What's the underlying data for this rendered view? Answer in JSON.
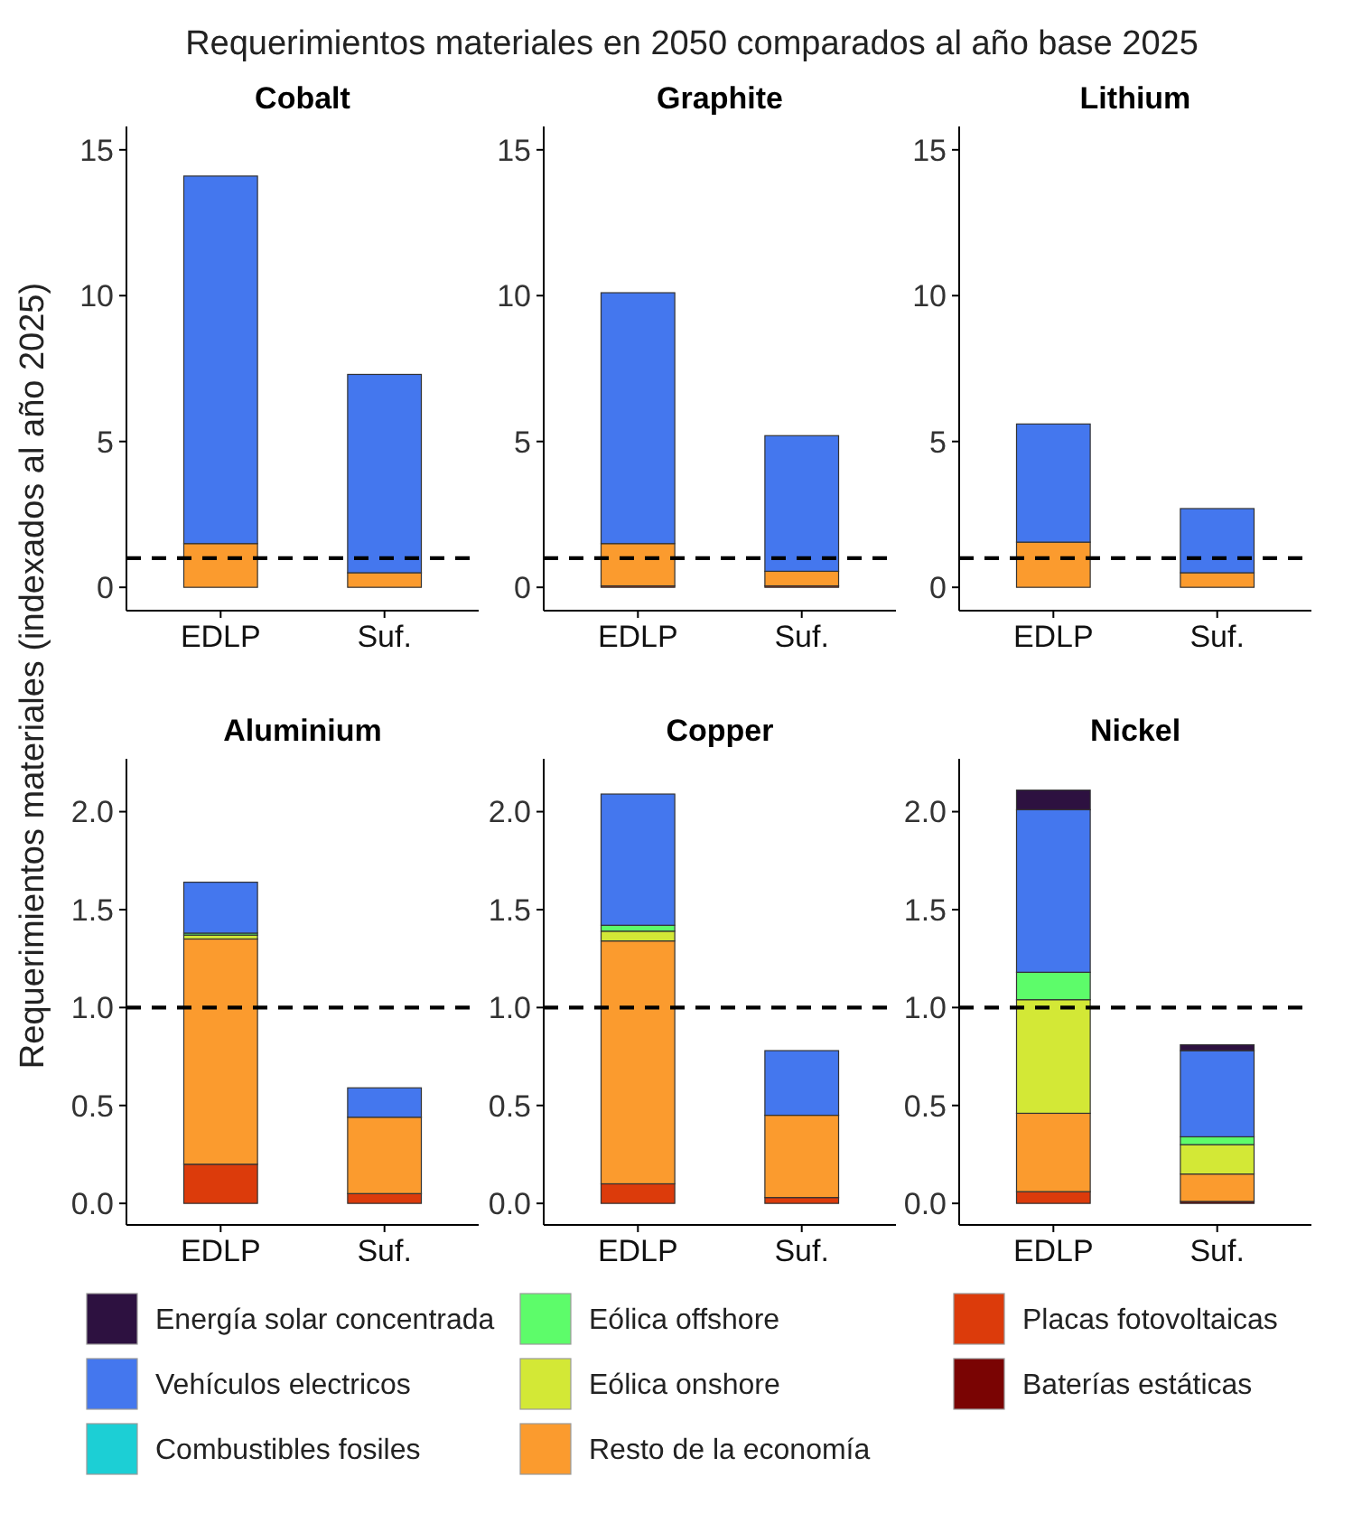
{
  "chart_data": [
    {
      "type": "bar",
      "title": "Cobalt",
      "ylabel": "Requerimientos materiales (indexados al año 2025)",
      "annotations": [
        "Requerimientos materiales en 2050 comparados al año base 2025"
      ],
      "legend": "bottom",
      "stacked": true,
      "categories": [
        "EDLP",
        "Suf."
      ],
      "ylim": [
        -0.8,
        15.8
      ],
      "yticks": [
        0,
        5,
        10,
        15
      ],
      "ref_lines": [
        {
          "axis": "y",
          "value": 1,
          "color": "#000000",
          "line_style": "dashed"
        }
      ],
      "series": [
        {
          "name": "Baterías estáticas",
          "color": "#7a0403",
          "values": [
            null,
            null
          ]
        },
        {
          "name": "Placas fotovoltaicas",
          "color": "#dc3b0b",
          "values": [
            null,
            null
          ]
        },
        {
          "name": "Resto de la economía",
          "color": "#fb9b2e",
          "values": [
            1.5,
            0.5
          ]
        },
        {
          "name": "Eólica onshore",
          "color": "#d3e836",
          "values": [
            null,
            null
          ]
        },
        {
          "name": "Eólica offshore",
          "color": "#5dfc6a",
          "values": [
            null,
            null
          ]
        },
        {
          "name": "Combustibles fosiles",
          "color": "#1ccfd5",
          "values": [
            null,
            null
          ]
        },
        {
          "name": "Vehículos electricos",
          "color": "#4477ee",
          "values": [
            12.6,
            6.8
          ]
        },
        {
          "name": "Energía solar concentrada",
          "color": "#2d1140",
          "values": [
            null,
            null
          ]
        }
      ]
    },
    {
      "type": "bar",
      "title": "Graphite",
      "stacked": true,
      "categories": [
        "EDLP",
        "Suf."
      ],
      "ylim": [
        -0.8,
        15.8
      ],
      "yticks": [
        0,
        5,
        10,
        15
      ],
      "ref_lines": [
        {
          "axis": "y",
          "value": 1,
          "color": "#000000",
          "line_style": "dashed"
        }
      ],
      "series": [
        {
          "color": "#dc3b0b",
          "values": [
            0.05,
            0.05
          ]
        },
        {
          "color": "#fb9b2e",
          "values": [
            1.45,
            0.5
          ]
        },
        {
          "color": "#4477ee",
          "values": [
            8.6,
            4.65
          ]
        }
      ]
    },
    {
      "type": "bar",
      "title": "Lithium",
      "stacked": true,
      "categories": [
        "EDLP",
        "Suf."
      ],
      "ylim": [
        -0.8,
        15.8
      ],
      "yticks": [
        0,
        5,
        10,
        15
      ],
      "ref_lines": [
        {
          "axis": "y",
          "value": 1,
          "color": "#000000",
          "line_style": "dashed"
        }
      ],
      "series": [
        {
          "color": "#fb9b2e",
          "values": [
            1.55,
            0.5
          ]
        },
        {
          "color": "#4477ee",
          "values": [
            4.05,
            2.2
          ]
        }
      ]
    },
    {
      "type": "bar",
      "title": "Aluminium",
      "stacked": true,
      "categories": [
        "EDLP",
        "Suf."
      ],
      "ylim": [
        -0.11,
        2.27
      ],
      "yticks": [
        {
          "value": 0,
          "label": "0.0"
        },
        {
          "value": 0.5,
          "label": "0.5"
        },
        {
          "value": 1,
          "label": "1.0"
        },
        {
          "value": 1.5,
          "label": "1.5"
        },
        {
          "value": 2,
          "label": "2.0"
        }
      ],
      "ref_lines": [
        {
          "axis": "y",
          "value": 1,
          "color": "#000000",
          "line_style": "dashed"
        }
      ],
      "series": [
        {
          "color": "#dc3b0b",
          "values": [
            0.2,
            0.05
          ]
        },
        {
          "color": "#fb9b2e",
          "values": [
            1.15,
            0.39
          ]
        },
        {
          "color": "#d3e836",
          "values": [
            0.02,
            null
          ]
        },
        {
          "color": "#5dfc6a",
          "values": [
            0.01,
            null
          ]
        },
        {
          "color": "#4477ee",
          "values": [
            0.26,
            0.15
          ]
        }
      ]
    },
    {
      "type": "bar",
      "title": "Copper",
      "stacked": true,
      "categories": [
        "EDLP",
        "Suf."
      ],
      "ylim": [
        -0.11,
        2.27
      ],
      "yticks": [
        {
          "value": 0,
          "label": "0.0"
        },
        {
          "value": 0.5,
          "label": "0.5"
        },
        {
          "value": 1,
          "label": "1.0"
        },
        {
          "value": 1.5,
          "label": "1.5"
        },
        {
          "value": 2,
          "label": "2.0"
        }
      ],
      "ref_lines": [
        {
          "axis": "y",
          "value": 1,
          "color": "#000000",
          "line_style": "dashed"
        }
      ],
      "series": [
        {
          "color": "#dc3b0b",
          "values": [
            0.1,
            0.03
          ]
        },
        {
          "color": "#fb9b2e",
          "values": [
            1.24,
            0.42
          ]
        },
        {
          "color": "#d3e836",
          "values": [
            0.05,
            null
          ]
        },
        {
          "color": "#5dfc6a",
          "values": [
            0.03,
            null
          ]
        },
        {
          "color": "#4477ee",
          "values": [
            0.67,
            0.33
          ]
        }
      ]
    },
    {
      "type": "bar",
      "title": "Nickel",
      "stacked": true,
      "categories": [
        "EDLP",
        "Suf."
      ],
      "ylim": [
        -0.11,
        2.27
      ],
      "yticks": [
        {
          "value": 0,
          "label": "0.0"
        },
        {
          "value": 0.5,
          "label": "0.5"
        },
        {
          "value": 1,
          "label": "1.0"
        },
        {
          "value": 1.5,
          "label": "1.5"
        },
        {
          "value": 2,
          "label": "2.0"
        }
      ],
      "ref_lines": [
        {
          "axis": "y",
          "value": 1,
          "color": "#000000",
          "line_style": "dashed"
        }
      ],
      "series": [
        {
          "color": "#7a0403",
          "values": [
            null,
            0.01
          ]
        },
        {
          "color": "#dc3b0b",
          "values": [
            0.06,
            null
          ]
        },
        {
          "color": "#fb9b2e",
          "values": [
            0.4,
            0.14
          ]
        },
        {
          "color": "#d3e836",
          "values": [
            0.58,
            0.15
          ]
        },
        {
          "color": "#5dfc6a",
          "values": [
            0.14,
            0.04
          ]
        },
        {
          "color": "#4477ee",
          "values": [
            0.83,
            0.44
          ]
        },
        {
          "color": "#2d1140",
          "values": [
            0.1,
            0.03
          ]
        }
      ]
    }
  ]
}
